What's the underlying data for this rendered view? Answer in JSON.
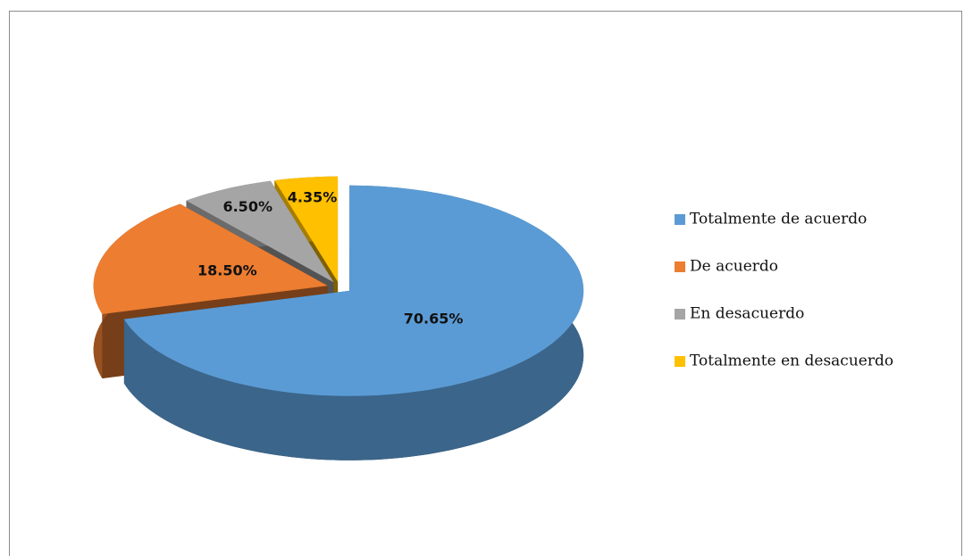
{
  "chart_data": {
    "type": "pie",
    "categories": [
      "Totalmente de acuerdo",
      "De acuerdo",
      "En desacuerdo",
      "Totalmente en desacuerdo"
    ],
    "values": [
      70.65,
      18.5,
      6.5,
      4.35
    ],
    "value_labels": [
      "70.65%",
      "18.50%",
      "6.50%",
      "4.35%"
    ],
    "colors": [
      "#5b9bd5",
      "#ed7d31",
      "#a5a5a5",
      "#ffc000"
    ],
    "legend": "right"
  }
}
